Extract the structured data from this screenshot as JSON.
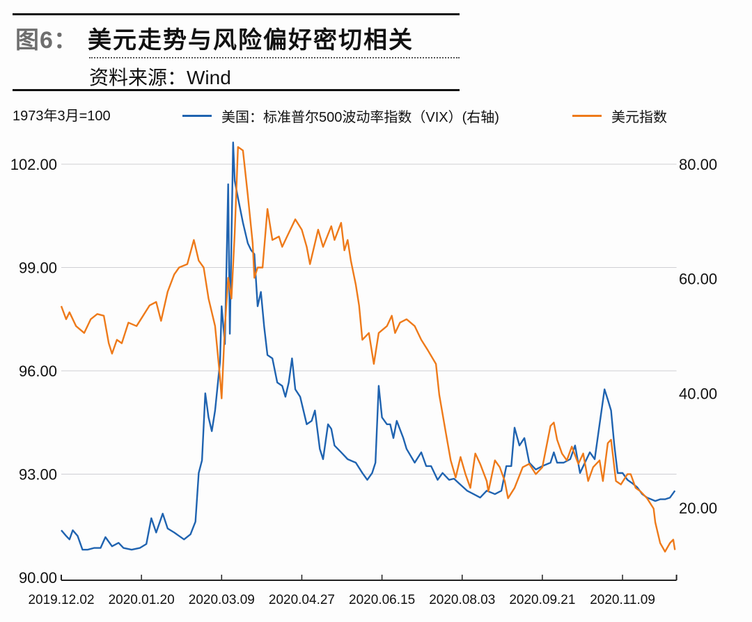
{
  "header": {
    "title_prefix": "图6：",
    "title": "美元走势与风险偏好密切相关",
    "source": "资料来源：Wind"
  },
  "chart_data": {
    "type": "line",
    "unit_note": "1973年3月=100",
    "x_unit": "days since 2019.12.02",
    "x_tick_labels": [
      "2019.12.02",
      "2020.01.20",
      "2020.03.09",
      "2020.04.27",
      "2020.06.15",
      "2020.08.03",
      "2020.09.21",
      "2020.11.09"
    ],
    "x_tick_days": [
      0,
      49,
      98,
      147,
      196,
      245,
      294,
      343
    ],
    "xlim": [
      0,
      376
    ],
    "left_axis": {
      "ylim": [
        90,
        102
      ],
      "ticks": [
        "90.00",
        "93.00",
        "96.00",
        "99.00",
        "102.00"
      ],
      "tick_values": [
        90,
        93,
        96,
        99,
        102
      ]
    },
    "right_axis": {
      "ylim": [
        20,
        80
      ],
      "ticks": [
        "20.00",
        "40.00",
        "60.00",
        "80.00"
      ],
      "tick_values": [
        20,
        40,
        60,
        80
      ]
    },
    "grid": true,
    "legend_position": "top",
    "series": [
      {
        "name": "美国：标准普尔500波动率指数（VIX）(右轴)",
        "axis": "right",
        "color": "#1f63b0",
        "points": [
          [
            0,
            16.1
          ],
          [
            3,
            15.1
          ],
          [
            5,
            14.5
          ],
          [
            7,
            16.1
          ],
          [
            10,
            15.1
          ],
          [
            13,
            12.7
          ],
          [
            16,
            12.7
          ],
          [
            20,
            13.0
          ],
          [
            24,
            13.0
          ],
          [
            27,
            14.9
          ],
          [
            31,
            13.3
          ],
          [
            35,
            13.9
          ],
          [
            38,
            13.0
          ],
          [
            43,
            12.7
          ],
          [
            48,
            13.0
          ],
          [
            52,
            13.7
          ],
          [
            55,
            18.2
          ],
          [
            58,
            15.7
          ],
          [
            62,
            19.0
          ],
          [
            65,
            16.4
          ],
          [
            69,
            15.7
          ],
          [
            72,
            15.1
          ],
          [
            75,
            14.5
          ],
          [
            79,
            15.4
          ],
          [
            82,
            17.6
          ],
          [
            84,
            26.1
          ],
          [
            86,
            28.3
          ],
          [
            88,
            40.0
          ],
          [
            90,
            35.8
          ],
          [
            92,
            33.4
          ],
          [
            94,
            37.0
          ],
          [
            97,
            45.5
          ],
          [
            98,
            55.2
          ],
          [
            100,
            48.6
          ],
          [
            102,
            76.5
          ],
          [
            103,
            50.4
          ],
          [
            105,
            83.8
          ],
          [
            106,
            77.1
          ],
          [
            108,
            74.1
          ],
          [
            111,
            69.8
          ],
          [
            114,
            66.2
          ],
          [
            116,
            65.0
          ],
          [
            118,
            64.3
          ],
          [
            120,
            55.2
          ],
          [
            122,
            57.7
          ],
          [
            124,
            51.6
          ],
          [
            126,
            46.7
          ],
          [
            129,
            46.1
          ],
          [
            132,
            41.9
          ],
          [
            135,
            41.3
          ],
          [
            137,
            39.4
          ],
          [
            139,
            41.9
          ],
          [
            141,
            46.1
          ],
          [
            143,
            40.7
          ],
          [
            146,
            39.4
          ],
          [
            150,
            34.6
          ],
          [
            153,
            35.2
          ],
          [
            155,
            37.0
          ],
          [
            158,
            30.3
          ],
          [
            160,
            28.5
          ],
          [
            163,
            34.6
          ],
          [
            165,
            33.8
          ],
          [
            167,
            30.9
          ],
          [
            171,
            29.7
          ],
          [
            175,
            28.5
          ],
          [
            180,
            27.9
          ],
          [
            184,
            26.1
          ],
          [
            187,
            24.9
          ],
          [
            190,
            26.1
          ],
          [
            192,
            27.9
          ],
          [
            194,
            41.3
          ],
          [
            196,
            35.8
          ],
          [
            199,
            34.6
          ],
          [
            201,
            34.6
          ],
          [
            203,
            32.2
          ],
          [
            205,
            35.2
          ],
          [
            209,
            32.2
          ],
          [
            211,
            30.3
          ],
          [
            216,
            27.9
          ],
          [
            220,
            29.7
          ],
          [
            223,
            27.3
          ],
          [
            226,
            27.3
          ],
          [
            230,
            24.9
          ],
          [
            233,
            26.1
          ],
          [
            237,
            24.9
          ],
          [
            240,
            25.1
          ],
          [
            243,
            24.3
          ],
          [
            248,
            23.0
          ],
          [
            252,
            22.4
          ],
          [
            256,
            21.8
          ],
          [
            260,
            23.0
          ],
          [
            265,
            22.4
          ],
          [
            269,
            23.0
          ],
          [
            272,
            27.3
          ],
          [
            275,
            27.3
          ],
          [
            277,
            34.0
          ],
          [
            280,
            30.9
          ],
          [
            283,
            32.2
          ],
          [
            286,
            27.9
          ],
          [
            290,
            26.7
          ],
          [
            294,
            27.3
          ],
          [
            299,
            27.9
          ],
          [
            301,
            29.7
          ],
          [
            303,
            27.9
          ],
          [
            307,
            27.9
          ],
          [
            311,
            28.5
          ],
          [
            314,
            30.9
          ],
          [
            317,
            26.1
          ],
          [
            320,
            27.9
          ],
          [
            323,
            29.7
          ],
          [
            326,
            28.5
          ],
          [
            329,
            34.6
          ],
          [
            332,
            40.7
          ],
          [
            334,
            38.9
          ],
          [
            336,
            37.0
          ],
          [
            338,
            30.9
          ],
          [
            340,
            26.1
          ],
          [
            343,
            26.1
          ],
          [
            346,
            24.9
          ],
          [
            349,
            24.3
          ],
          [
            352,
            23.6
          ],
          [
            355,
            22.4
          ],
          [
            358,
            21.8
          ],
          [
            363,
            21.2
          ],
          [
            366,
            21.5
          ],
          [
            369,
            21.5
          ],
          [
            372,
            21.8
          ],
          [
            375,
            23.0
          ]
        ]
      },
      {
        "name": "美元指数",
        "axis": "left",
        "color": "#ee7a1a",
        "points": [
          [
            0,
            97.88
          ],
          [
            3,
            97.5
          ],
          [
            5,
            97.7
          ],
          [
            9,
            97.3
          ],
          [
            14,
            97.1
          ],
          [
            18,
            97.5
          ],
          [
            22,
            97.65
          ],
          [
            26,
            97.6
          ],
          [
            29,
            96.8
          ],
          [
            31,
            96.5
          ],
          [
            34,
            96.9
          ],
          [
            37,
            96.8
          ],
          [
            41,
            97.4
          ],
          [
            46,
            97.3
          ],
          [
            50,
            97.6
          ],
          [
            54,
            97.9
          ],
          [
            58,
            98.0
          ],
          [
            61,
            97.45
          ],
          [
            65,
            98.3
          ],
          [
            69,
            98.8
          ],
          [
            72,
            99.0
          ],
          [
            77,
            99.1
          ],
          [
            81,
            99.8
          ],
          [
            84,
            99.2
          ],
          [
            87,
            99.0
          ],
          [
            90,
            98.1
          ],
          [
            94,
            97.3
          ],
          [
            97,
            95.8
          ],
          [
            98,
            95.2
          ],
          [
            100,
            97.3
          ],
          [
            102,
            98.7
          ],
          [
            104,
            98.1
          ],
          [
            106,
            100.0
          ],
          [
            108,
            102.5
          ],
          [
            111,
            102.4
          ],
          [
            114,
            101.1
          ],
          [
            117,
            99.7
          ],
          [
            118,
            98.7
          ],
          [
            120,
            99.0
          ],
          [
            123,
            99.0
          ],
          [
            126,
            100.7
          ],
          [
            129,
            99.8
          ],
          [
            133,
            99.9
          ],
          [
            135,
            99.6
          ],
          [
            138,
            99.9
          ],
          [
            143,
            100.4
          ],
          [
            147,
            100.1
          ],
          [
            150,
            99.6
          ],
          [
            152,
            99.1
          ],
          [
            154,
            99.5
          ],
          [
            157,
            100.1
          ],
          [
            160,
            99.6
          ],
          [
            165,
            100.2
          ],
          [
            167,
            99.8
          ],
          [
            171,
            100.3
          ],
          [
            173,
            99.5
          ],
          [
            175,
            99.8
          ],
          [
            177,
            99.2
          ],
          [
            180,
            98.5
          ],
          [
            182,
            97.9
          ],
          [
            184,
            96.9
          ],
          [
            188,
            97.1
          ],
          [
            191,
            96.2
          ],
          [
            194,
            97.1
          ],
          [
            199,
            97.3
          ],
          [
            202,
            97.6
          ],
          [
            204,
            97.1
          ],
          [
            207,
            97.4
          ],
          [
            211,
            97.5
          ],
          [
            216,
            97.3
          ],
          [
            220,
            96.9
          ],
          [
            224,
            96.6
          ],
          [
            229,
            96.2
          ],
          [
            231,
            95.3
          ],
          [
            235,
            94.2
          ],
          [
            238,
            93.4
          ],
          [
            241,
            92.9
          ],
          [
            244,
            93.5
          ],
          [
            247,
            93.0
          ],
          [
            250,
            92.6
          ],
          [
            253,
            93.6
          ],
          [
            256,
            93.3
          ],
          [
            260,
            92.8
          ],
          [
            261,
            92.5
          ],
          [
            265,
            93.4
          ],
          [
            268,
            93.2
          ],
          [
            271,
            92.8
          ],
          [
            273,
            92.3
          ],
          [
            277,
            92.6
          ],
          [
            282,
            93.2
          ],
          [
            286,
            93.3
          ],
          [
            290,
            93.0
          ],
          [
            294,
            93.2
          ],
          [
            299,
            94.4
          ],
          [
            301,
            94.5
          ],
          [
            303,
            94.0
          ],
          [
            306,
            93.6
          ],
          [
            309,
            93.4
          ],
          [
            312,
            93.8
          ],
          [
            316,
            93.3
          ],
          [
            319,
            93.6
          ],
          [
            322,
            92.8
          ],
          [
            325,
            93.2
          ],
          [
            329,
            93.4
          ],
          [
            331,
            92.8
          ],
          [
            334,
            93.9
          ],
          [
            336,
            94.0
          ],
          [
            339,
            92.8
          ],
          [
            342,
            92.7
          ],
          [
            346,
            93.0
          ],
          [
            348,
            93.0
          ],
          [
            351,
            92.6
          ],
          [
            354,
            92.5
          ],
          [
            358,
            92.3
          ],
          [
            362,
            92.0
          ],
          [
            363,
            91.6
          ],
          [
            366,
            91.0
          ],
          [
            369,
            90.75
          ],
          [
            372,
            91.0
          ],
          [
            374,
            91.1
          ],
          [
            375,
            90.8
          ]
        ]
      }
    ]
  }
}
